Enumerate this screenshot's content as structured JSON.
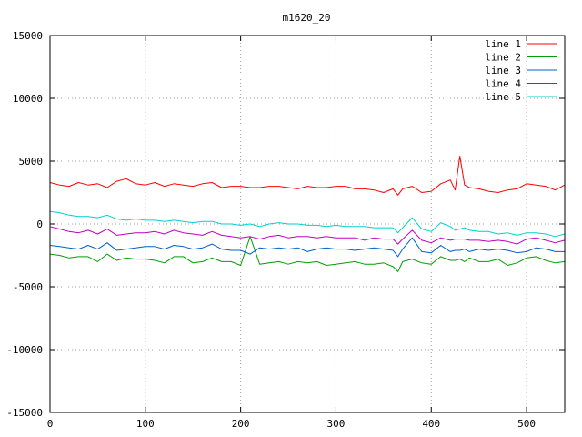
{
  "chart_data": {
    "type": "line",
    "title": "m1620_20",
    "xlabel": "",
    "ylabel": "",
    "xlim": [
      0,
      540
    ],
    "ylim": [
      -15000,
      15000
    ],
    "x_ticks": [
      0,
      100,
      200,
      300,
      400,
      500
    ],
    "y_ticks": [
      -15000,
      -10000,
      -5000,
      0,
      5000,
      10000,
      15000
    ],
    "grid": true,
    "legend_position": "top-right",
    "x": [
      0,
      10,
      20,
      30,
      40,
      50,
      60,
      70,
      80,
      90,
      100,
      110,
      120,
      130,
      140,
      150,
      160,
      170,
      180,
      190,
      200,
      210,
      220,
      230,
      240,
      250,
      260,
      270,
      280,
      290,
      300,
      310,
      320,
      330,
      340,
      350,
      360,
      365,
      370,
      380,
      390,
      400,
      410,
      420,
      425,
      430,
      435,
      440,
      450,
      460,
      470,
      480,
      490,
      500,
      510,
      520,
      530,
      540
    ],
    "series": [
      {
        "name": "line 1",
        "color": "#ff0000",
        "values": [
          3300,
          3100,
          3000,
          3300,
          3100,
          3200,
          2900,
          3400,
          3600,
          3200,
          3100,
          3300,
          3000,
          3200,
          3100,
          3000,
          3200,
          3300,
          2900,
          3000,
          3000,
          2900,
          2900,
          3000,
          3000,
          2900,
          2800,
          3000,
          2900,
          2900,
          3000,
          3000,
          2800,
          2800,
          2700,
          2500,
          2800,
          2300,
          2800,
          3000,
          2500,
          2600,
          3200,
          3500,
          2700,
          5400,
          3100,
          2900,
          2800,
          2600,
          2500,
          2700,
          2800,
          3200,
          3100,
          3000,
          2700,
          3100
        ]
      },
      {
        "name": "line 2",
        "color": "#00a000",
        "values": [
          -2400,
          -2500,
          -2700,
          -2600,
          -2600,
          -3000,
          -2400,
          -2900,
          -2700,
          -2800,
          -2800,
          -2900,
          -3100,
          -2600,
          -2600,
          -3100,
          -3000,
          -2700,
          -3000,
          -3000,
          -3300,
          -1000,
          -3200,
          -3100,
          -3000,
          -3200,
          -3000,
          -3100,
          -3000,
          -3300,
          -3200,
          -3100,
          -3000,
          -3200,
          -3200,
          -3100,
          -3400,
          -3800,
          -3000,
          -2800,
          -3100,
          -3200,
          -2600,
          -2900,
          -2900,
          -2800,
          -3000,
          -2700,
          -3000,
          -3000,
          -2800,
          -3300,
          -3100,
          -2700,
          -2600,
          -2900,
          -3100,
          -3000
        ]
      },
      {
        "name": "line 3",
        "color": "#0060c8",
        "values": [
          -1700,
          -1800,
          -1900,
          -2000,
          -1700,
          -2000,
          -1500,
          -2100,
          -2000,
          -1900,
          -1800,
          -1800,
          -2000,
          -1700,
          -1800,
          -2000,
          -1900,
          -1600,
          -2000,
          -2100,
          -2100,
          -2400,
          -1900,
          -2000,
          -1900,
          -2000,
          -1900,
          -2200,
          -2000,
          -1900,
          -2000,
          -2000,
          -2100,
          -2000,
          -1900,
          -2000,
          -2100,
          -2600,
          -2000,
          -1100,
          -2200,
          -2300,
          -1700,
          -2200,
          -2100,
          -2100,
          -2000,
          -2200,
          -2000,
          -2100,
          -2000,
          -2100,
          -2300,
          -2200,
          -1900,
          -2000,
          -2200,
          -2200
        ]
      },
      {
        "name": "line 4",
        "color": "#c000c0",
        "values": [
          -200,
          -400,
          -600,
          -700,
          -500,
          -800,
          -400,
          -900,
          -800,
          -700,
          -700,
          -600,
          -800,
          -500,
          -700,
          -800,
          -900,
          -600,
          -900,
          -1000,
          -1100,
          -1000,
          -1200,
          -1000,
          -900,
          -1100,
          -1000,
          -1000,
          -1100,
          -1000,
          -1100,
          -1100,
          -1100,
          -1300,
          -1100,
          -1200,
          -1200,
          -1600,
          -1200,
          -500,
          -1300,
          -1500,
          -1100,
          -1300,
          -1200,
          -1200,
          -1200,
          -1300,
          -1300,
          -1400,
          -1300,
          -1400,
          -1600,
          -1200,
          -1100,
          -1300,
          -1500,
          -1300
        ]
      },
      {
        "name": "line 5",
        "color": "#00d0d0",
        "values": [
          1000,
          900,
          700,
          600,
          600,
          500,
          700,
          400,
          300,
          400,
          300,
          300,
          200,
          300,
          200,
          100,
          200,
          200,
          0,
          0,
          -100,
          0,
          -200,
          0,
          100,
          0,
          0,
          -100,
          -100,
          -200,
          -100,
          -200,
          -200,
          -200,
          -300,
          -300,
          -300,
          -700,
          -300,
          500,
          -400,
          -600,
          100,
          -200,
          -500,
          -400,
          -300,
          -500,
          -600,
          -600,
          -800,
          -700,
          -900,
          -700,
          -700,
          -800,
          -1000,
          -800
        ]
      }
    ]
  }
}
